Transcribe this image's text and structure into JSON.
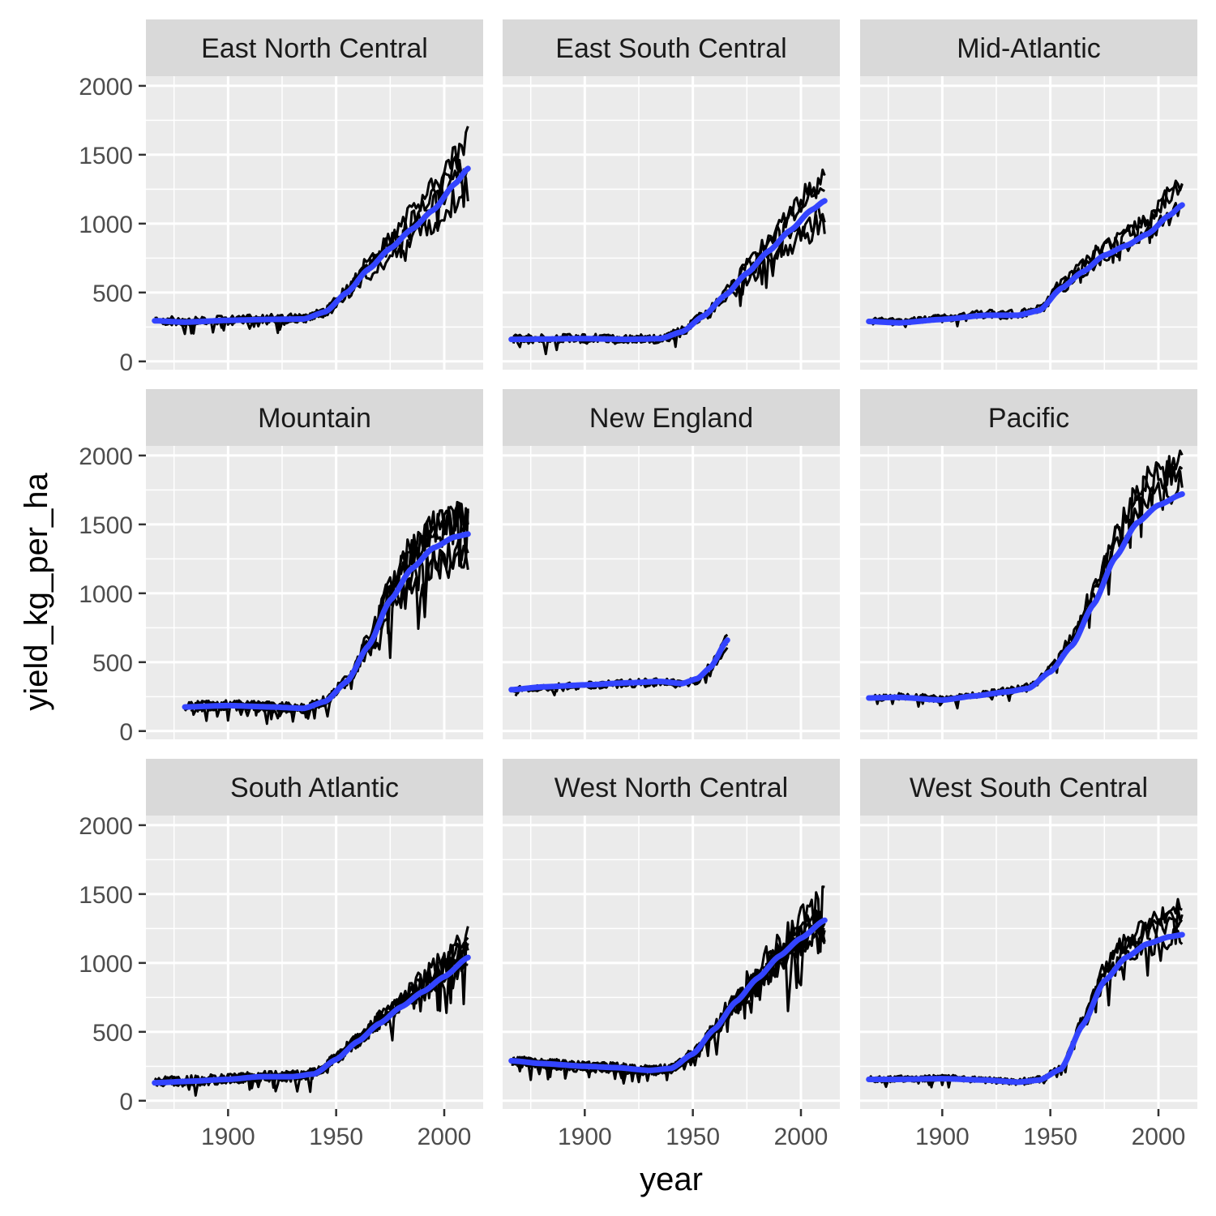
{
  "chart_data": {
    "type": "line",
    "facet_layout": "3x3",
    "xlabel": "year",
    "ylabel": "yield_kg_per_ha",
    "xlim": [
      1862,
      2018
    ],
    "ylim": [
      -60,
      2070
    ],
    "x_ticks": [
      1900,
      1950,
      2000
    ],
    "y_ticks": [
      0,
      500,
      1000,
      1500,
      2000
    ],
    "smooth_color": "#3344ff",
    "line_color": "#000000",
    "panels": [
      {
        "name": "East North Central",
        "x_range": [
          1866,
          2011
        ],
        "noise": 55,
        "n_series": 4,
        "smooth": [
          [
            1866,
            295
          ],
          [
            1880,
            285
          ],
          [
            1900,
            298
          ],
          [
            1920,
            305
          ],
          [
            1935,
            308
          ],
          [
            1945,
            360
          ],
          [
            1955,
            500
          ],
          [
            1965,
            670
          ],
          [
            1975,
            820
          ],
          [
            1985,
            960
          ],
          [
            1995,
            1100
          ],
          [
            2005,
            1290
          ],
          [
            2011,
            1400
          ]
        ]
      },
      {
        "name": "East South Central",
        "x_range": [
          1866,
          2011
        ],
        "noise": 60,
        "n_series": 4,
        "smooth": [
          [
            1866,
            160
          ],
          [
            1900,
            165
          ],
          [
            1920,
            160
          ],
          [
            1935,
            165
          ],
          [
            1945,
            215
          ],
          [
            1955,
            330
          ],
          [
            1965,
            480
          ],
          [
            1975,
            640
          ],
          [
            1985,
            800
          ],
          [
            1995,
            950
          ],
          [
            2005,
            1100
          ],
          [
            2011,
            1165
          ]
        ]
      },
      {
        "name": "Mid-Atlantic",
        "x_range": [
          1866,
          2011
        ],
        "noise": 45,
        "n_series": 3,
        "smooth": [
          [
            1866,
            290
          ],
          [
            1880,
            280
          ],
          [
            1900,
            305
          ],
          [
            1920,
            335
          ],
          [
            1935,
            335
          ],
          [
            1945,
            370
          ],
          [
            1955,
            530
          ],
          [
            1965,
            650
          ],
          [
            1975,
            770
          ],
          [
            1985,
            840
          ],
          [
            1995,
            925
          ],
          [
            2005,
            1060
          ],
          [
            2011,
            1135
          ]
        ]
      },
      {
        "name": "Mountain",
        "x_range": [
          1880,
          2011
        ],
        "noise": 70,
        "n_series": 5,
        "smooth": [
          [
            1880,
            175
          ],
          [
            1900,
            185
          ],
          [
            1920,
            175
          ],
          [
            1935,
            165
          ],
          [
            1945,
            215
          ],
          [
            1955,
            360
          ],
          [
            1965,
            620
          ],
          [
            1975,
            950
          ],
          [
            1985,
            1180
          ],
          [
            1995,
            1330
          ],
          [
            2005,
            1410
          ],
          [
            2011,
            1430
          ]
        ]
      },
      {
        "name": "New England",
        "x_range": [
          1866,
          1966
        ],
        "noise": 35,
        "n_series": 3,
        "smooth": [
          [
            1866,
            300
          ],
          [
            1880,
            320
          ],
          [
            1900,
            335
          ],
          [
            1920,
            350
          ],
          [
            1935,
            360
          ],
          [
            1945,
            345
          ],
          [
            1952,
            380
          ],
          [
            1958,
            460
          ],
          [
            1966,
            660
          ]
        ]
      },
      {
        "name": "Pacific",
        "x_range": [
          1866,
          2011
        ],
        "noise": 50,
        "n_series": 3,
        "smooth": [
          [
            1866,
            240
          ],
          [
            1880,
            245
          ],
          [
            1900,
            225
          ],
          [
            1915,
            255
          ],
          [
            1930,
            285
          ],
          [
            1940,
            310
          ],
          [
            1950,
            430
          ],
          [
            1960,
            620
          ],
          [
            1970,
            920
          ],
          [
            1980,
            1260
          ],
          [
            1990,
            1510
          ],
          [
            2000,
            1640
          ],
          [
            2011,
            1720
          ]
        ]
      },
      {
        "name": "South Atlantic",
        "x_range": [
          1866,
          2011
        ],
        "noise": 75,
        "n_series": 5,
        "smooth": [
          [
            1866,
            130
          ],
          [
            1880,
            140
          ],
          [
            1900,
            155
          ],
          [
            1915,
            175
          ],
          [
            1930,
            175
          ],
          [
            1940,
            195
          ],
          [
            1950,
            300
          ],
          [
            1960,
            430
          ],
          [
            1970,
            560
          ],
          [
            1980,
            680
          ],
          [
            1990,
            790
          ],
          [
            2000,
            900
          ],
          [
            2011,
            1040
          ]
        ]
      },
      {
        "name": "West North Central",
        "x_range": [
          1866,
          2011
        ],
        "noise": 75,
        "n_series": 7,
        "smooth": [
          [
            1866,
            290
          ],
          [
            1880,
            270
          ],
          [
            1900,
            250
          ],
          [
            1915,
            240
          ],
          [
            1930,
            220
          ],
          [
            1940,
            235
          ],
          [
            1950,
            340
          ],
          [
            1960,
            520
          ],
          [
            1970,
            720
          ],
          [
            1980,
            890
          ],
          [
            1990,
            1050
          ],
          [
            2000,
            1180
          ],
          [
            2011,
            1310
          ]
        ]
      },
      {
        "name": "West South Central",
        "x_range": [
          1866,
          2011
        ],
        "noise": 45,
        "n_series": 4,
        "smooth": [
          [
            1866,
            155
          ],
          [
            1880,
            155
          ],
          [
            1900,
            160
          ],
          [
            1920,
            150
          ],
          [
            1935,
            135
          ],
          [
            1945,
            150
          ],
          [
            1955,
            230
          ],
          [
            1965,
            550
          ],
          [
            1975,
            870
          ],
          [
            1985,
            1040
          ],
          [
            1995,
            1140
          ],
          [
            2005,
            1190
          ],
          [
            2011,
            1205
          ]
        ]
      }
    ]
  }
}
